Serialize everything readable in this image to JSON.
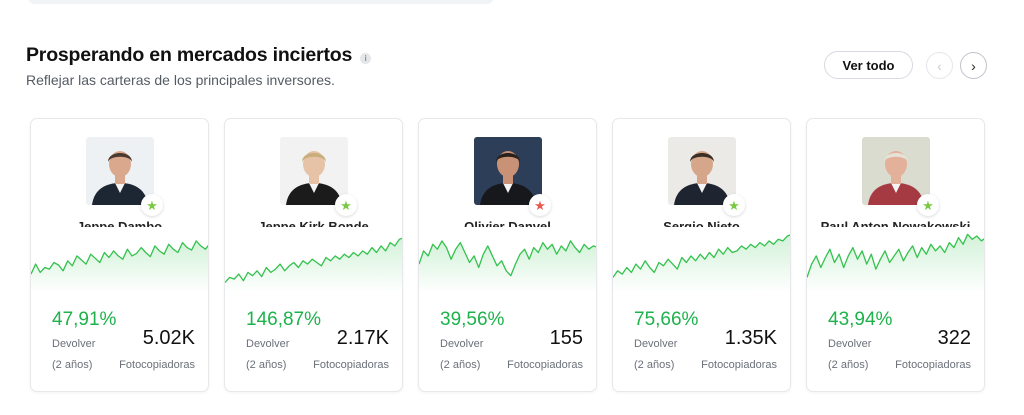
{
  "section": {
    "title": "Prosperando en mercados inciertos",
    "info_icon": "i",
    "subtitle": "Reflejar las carteras de los principales inversores.",
    "view_all_label": "Ver todo",
    "prev_icon": "‹",
    "next_icon": "›"
  },
  "labels": {
    "return_label": "Devolver",
    "return_period": "(2 años)",
    "copiers_label": "Fotocopiadoras"
  },
  "colors": {
    "positive": "#1db24b",
    "chart_line": "#34c24e",
    "badge_green": "#7ac943",
    "badge_red": "#e8584c"
  },
  "investors": [
    {
      "name": "Jeppe Dambo",
      "return": "47,91%",
      "copiers": "5.02K",
      "badge": "★",
      "badge_color": "#7ac943",
      "avatar_bg": "#eef1f4",
      "skin": "#d9a88d",
      "hair": "#4a3a30",
      "shirt": "#1d2633",
      "trend": [
        52,
        40,
        50,
        44,
        46,
        38,
        41,
        48,
        36,
        42,
        30,
        35,
        40,
        28,
        33,
        38,
        26,
        32,
        24,
        30,
        34,
        22,
        30,
        27,
        20,
        26,
        31,
        18,
        24,
        28,
        16,
        22,
        26,
        14,
        20,
        23,
        12,
        18,
        22,
        15
      ]
    },
    {
      "name": "Jeppe Kirk Bonde",
      "return": "146,87%",
      "copiers": "2.17K",
      "badge": "★",
      "badge_color": "#7ac943",
      "avatar_bg": "#f2f2f2",
      "skin": "#e6c2a6",
      "hair": "#c9ad7c",
      "shirt": "#1b1b1b",
      "trend": [
        62,
        56,
        58,
        52,
        60,
        50,
        54,
        48,
        55,
        44,
        50,
        46,
        40,
        48,
        42,
        38,
        44,
        36,
        40,
        34,
        38,
        42,
        32,
        36,
        30,
        34,
        28,
        32,
        26,
        30,
        24,
        28,
        20,
        26,
        18,
        24,
        14,
        18,
        10,
        8
      ]
    },
    {
      "name": "Olivier Danvel",
      "return": "39,56%",
      "copiers": "155",
      "badge": "★",
      "badge_color": "#e8584c",
      "avatar_bg": "#2d3e58",
      "skin": "#c99276",
      "hair": "#2a211c",
      "shirt": "#16181c",
      "trend": [
        40,
        24,
        30,
        16,
        22,
        12,
        20,
        34,
        22,
        14,
        26,
        38,
        30,
        44,
        28,
        18,
        30,
        42,
        36,
        48,
        54,
        40,
        28,
        22,
        34,
        20,
        26,
        14,
        22,
        16,
        28,
        18,
        24,
        12,
        20,
        26,
        16,
        22,
        18,
        20
      ]
    },
    {
      "name": "Sergio Nieto",
      "return": "75,66%",
      "copiers": "1.35K",
      "badge": "★",
      "badge_color": "#7ac943",
      "avatar_bg": "#eceae6",
      "skin": "#d6a68a",
      "hair": "#3b2e26",
      "shirt": "#1e2530",
      "trend": [
        56,
        48,
        52,
        44,
        50,
        40,
        46,
        36,
        44,
        50,
        38,
        42,
        34,
        40,
        46,
        32,
        38,
        30,
        36,
        28,
        34,
        26,
        32,
        22,
        28,
        20,
        26,
        24,
        18,
        22,
        16,
        20,
        14,
        18,
        12,
        16,
        10,
        12,
        6,
        4
      ]
    },
    {
      "name": "Paul Anton Nowakowski",
      "return": "43,94%",
      "copiers": "322",
      "badge": "★",
      "badge_color": "#7ac943",
      "avatar_bg": "#d9dccf",
      "skin": "#e3b09a",
      "hair": "#e6e2d8",
      "shirt": "#a63a43",
      "trend": [
        56,
        40,
        30,
        44,
        32,
        22,
        38,
        28,
        44,
        30,
        20,
        34,
        24,
        40,
        28,
        46,
        34,
        24,
        38,
        30,
        22,
        36,
        26,
        18,
        32,
        20,
        28,
        16,
        24,
        18,
        26,
        14,
        20,
        8,
        16,
        4,
        10,
        6,
        12,
        8
      ]
    }
  ]
}
